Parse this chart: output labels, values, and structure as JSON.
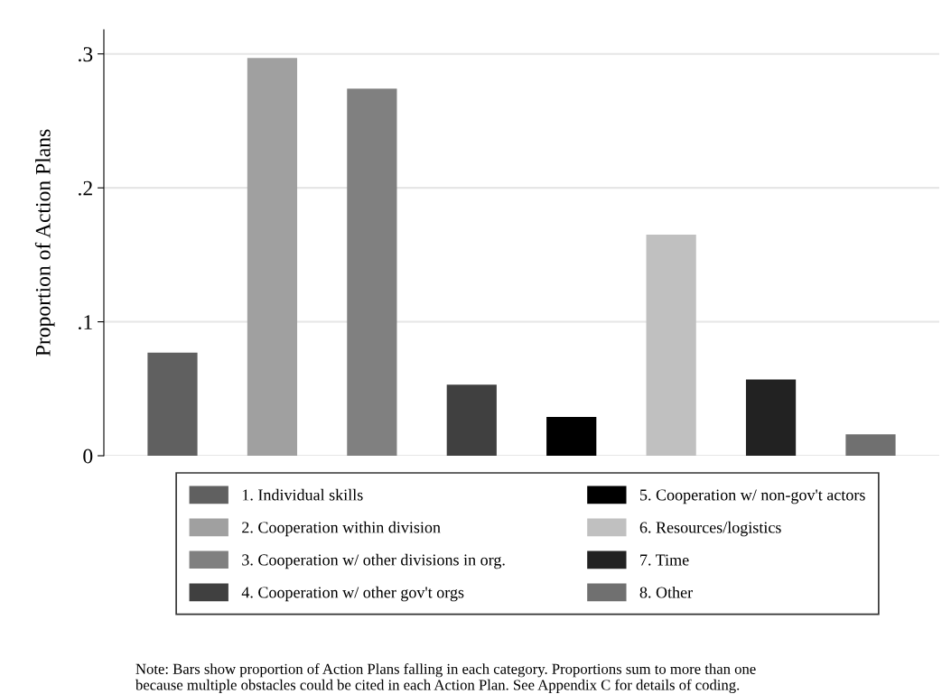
{
  "chart_data": {
    "type": "bar",
    "ylabel": "Proportion of Action Plans",
    "categories": [
      null
    ],
    "series": [
      {
        "name": "1. Individual skills",
        "color": "#606060",
        "values": [
          0.077
        ]
      },
      {
        "name": "2. Cooperation within division",
        "color": "#a0a0a0",
        "values": [
          0.297
        ]
      },
      {
        "name": "3. Cooperation w/ other divisions in org.",
        "color": "#808080",
        "values": [
          0.274
        ]
      },
      {
        "name": "4. Cooperation w/ other gov't orgs",
        "color": "#404040",
        "values": [
          0.053
        ]
      },
      {
        "name": "5. Cooperation w/ non-gov't actors",
        "color": "#000000",
        "values": [
          0.029
        ]
      },
      {
        "name": "6. Resources/logistics",
        "color": "#c0c0c0",
        "values": [
          0.165
        ]
      },
      {
        "name": "7. Time",
        "color": "#222222",
        "values": [
          0.057
        ]
      },
      {
        "name": "8. Other",
        "color": "#707070",
        "values": [
          0.016
        ]
      }
    ],
    "ylim": [
      0,
      0.318
    ],
    "yticks": [
      0,
      {
        "value": 0.1,
        "label": ".1"
      },
      {
        "value": 0.2,
        "label": ".2"
      },
      {
        "value": 0.3,
        "label": ".3"
      }
    ],
    "grid": "y",
    "legend": "bottom",
    "annotations": [
      "Note: Bars show proportion of Action Plans falling in each category. Proportions sum to more than one\nbecause multiple obstacles could be cited in each Action Plan. See Appendix C for details of coding."
    ]
  }
}
